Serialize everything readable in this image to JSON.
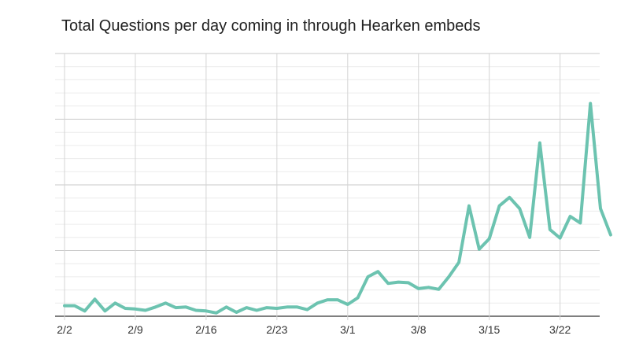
{
  "chart_data": {
    "type": "line",
    "title": "Total Questions per day coming in through Hearken embeds",
    "xlabel": "",
    "ylabel": "",
    "x_ticks": [
      {
        "label": "2/2",
        "index": 0
      },
      {
        "label": "2/9",
        "index": 7
      },
      {
        "label": "2/16",
        "index": 14
      },
      {
        "label": "2/23",
        "index": 21
      },
      {
        "label": "3/1",
        "index": 28
      },
      {
        "label": "3/8",
        "index": 35
      },
      {
        "label": "3/15",
        "index": 42
      },
      {
        "label": "3/22",
        "index": 49
      }
    ],
    "y_tick_labels_shown": false,
    "ylim": [
      0,
      20
    ],
    "grid": "major and minor horizontal and vertical",
    "series": [
      {
        "color": "#6cc3b0",
        "values": [
          0.8,
          0.8,
          0.4,
          1.3,
          0.4,
          1.0,
          0.6,
          0.55,
          0.45,
          0.7,
          1.0,
          0.65,
          0.7,
          0.45,
          0.4,
          0.25,
          0.7,
          0.3,
          0.65,
          0.45,
          0.65,
          0.6,
          0.7,
          0.7,
          0.5,
          1.0,
          1.25,
          1.25,
          0.9,
          1.4,
          3.0,
          3.4,
          2.5,
          2.6,
          2.55,
          2.1,
          2.2,
          2.05,
          3.0,
          4.1,
          8.4,
          5.1,
          5.9,
          8.4,
          9.05,
          8.2,
          6.0,
          13.2,
          6.6,
          5.95,
          7.6,
          7.1,
          16.2,
          8.2,
          6.2
        ]
      }
    ]
  }
}
